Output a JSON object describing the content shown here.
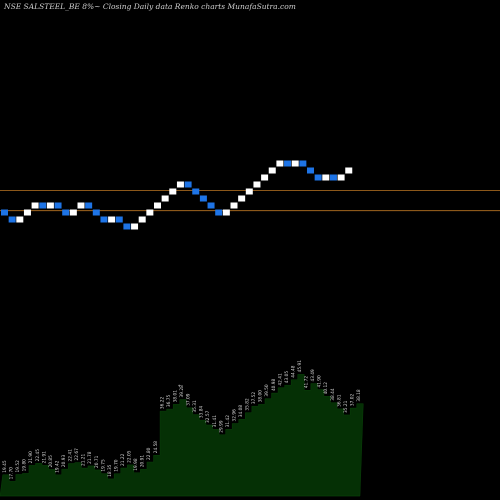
{
  "header": {
    "title": "NSE SALSTEEL_BE 8%~  Closing Daily data  Renko  charts MunafaSutra.com"
  },
  "chart_data": {
    "type": "renko",
    "symbol": "NSE SALSTEEL_BE",
    "box_size": "8%",
    "colors": {
      "background": "#000000",
      "up_brick": "#ffffff",
      "down_brick": "#1e74e6",
      "reference_line": "#a0641e",
      "volume_fill": "#053005"
    },
    "reference_levels": [
      36.45,
      32.15
    ],
    "bricks": [
      {
        "dir": "down",
        "close": 31.0
      },
      {
        "dir": "down",
        "close": 29.5
      },
      {
        "dir": "up",
        "close": 31.0
      },
      {
        "dir": "up",
        "close": 32.5
      },
      {
        "dir": "up",
        "close": 34.0
      },
      {
        "dir": "down",
        "close": 32.5
      },
      {
        "dir": "up",
        "close": 34.0
      },
      {
        "dir": "down",
        "close": 32.5
      },
      {
        "dir": "down",
        "close": 31.0
      },
      {
        "dir": "up",
        "close": 32.5
      },
      {
        "dir": "up",
        "close": 34.0
      },
      {
        "dir": "down",
        "close": 32.5
      },
      {
        "dir": "down",
        "close": 31.0
      },
      {
        "dir": "down",
        "close": 29.5
      },
      {
        "dir": "up",
        "close": 31.0
      },
      {
        "dir": "down",
        "close": 29.5
      },
      {
        "dir": "down",
        "close": 28.0
      },
      {
        "dir": "up",
        "close": 29.5
      },
      {
        "dir": "up",
        "close": 31.0
      },
      {
        "dir": "up",
        "close": 32.5
      },
      {
        "dir": "up",
        "close": 34.0
      },
      {
        "dir": "up",
        "close": 35.5
      },
      {
        "dir": "up",
        "close": 37.0
      },
      {
        "dir": "up",
        "close": 38.5
      },
      {
        "dir": "down",
        "close": 37.0
      },
      {
        "dir": "down",
        "close": 35.5
      },
      {
        "dir": "down",
        "close": 34.0
      },
      {
        "dir": "down",
        "close": 32.5
      },
      {
        "dir": "down",
        "close": 31.0
      },
      {
        "dir": "up",
        "close": 32.5
      },
      {
        "dir": "up",
        "close": 34.0
      },
      {
        "dir": "up",
        "close": 35.5
      },
      {
        "dir": "up",
        "close": 37.0
      },
      {
        "dir": "up",
        "close": 38.5
      },
      {
        "dir": "up",
        "close": 40.0
      },
      {
        "dir": "up",
        "close": 41.5
      },
      {
        "dir": "up",
        "close": 43.0
      },
      {
        "dir": "down",
        "close": 41.5
      },
      {
        "dir": "up",
        "close": 43.0
      },
      {
        "dir": "down",
        "close": 41.5
      },
      {
        "dir": "down",
        "close": 40.0
      },
      {
        "dir": "down",
        "close": 38.5
      },
      {
        "dir": "up",
        "close": 40.0
      },
      {
        "dir": "down",
        "close": 38.5
      },
      {
        "dir": "up",
        "close": 40.0
      },
      {
        "dir": "up",
        "close": 41.5
      }
    ],
    "labels": [
      "19.45",
      "17.70",
      "19.52",
      "19.80",
      "21.90",
      "22.45",
      "21.91",
      "20.85",
      "19.42",
      "20.93",
      "22.41",
      "22.67",
      "21.21",
      "21.78",
      "20.71",
      "19.75",
      "18.35",
      "19.70",
      "21.22",
      "22.05",
      "19.98",
      "20.91",
      "22.80",
      "24.58",
      "36.22",
      "36.75",
      "38.01",
      "39.28",
      "37.09",
      "35.31",
      "33.84",
      "32.57",
      "31.41",
      "29.99",
      "31.42",
      "32.96",
      "34.08",
      "35.82",
      "37.52",
      "38.00",
      "39.50",
      "40.98",
      "42.41",
      "43.05",
      "44.48",
      "45.91",
      "41.72",
      "43.49",
      "41.90",
      "40.12",
      "38.44",
      "36.81",
      "35.21",
      "37.02",
      "38.18"
    ],
    "label_star": "*"
  }
}
